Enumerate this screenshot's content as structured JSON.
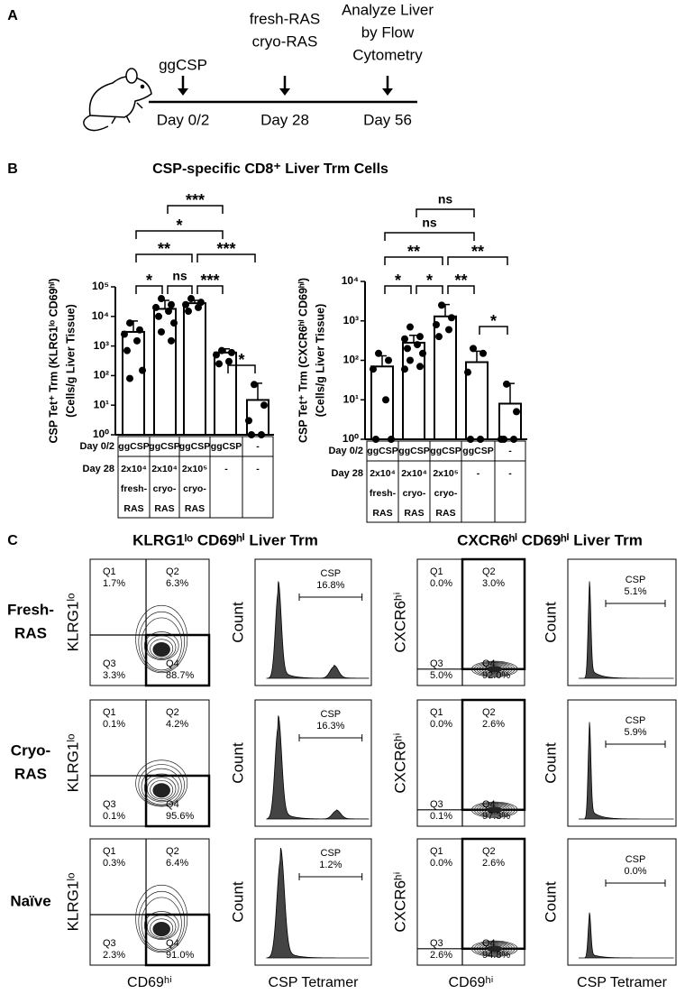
{
  "panel_a": {
    "label": "A",
    "events": [
      [
        "ggCSP"
      ],
      [
        "fresh-RAS",
        "cryo-RAS"
      ],
      [
        "Analyze Liver",
        "by Flow",
        "Cytometry"
      ]
    ],
    "days": [
      "Day 0/2",
      "Day 28",
      "Day 56"
    ]
  },
  "panel_b": {
    "label": "B",
    "title": "CSP-specific CD8⁺ Liver Trm Cells"
  },
  "chart_data": [
    {
      "type": "bar",
      "color": "#ffffff",
      "log_scale": true,
      "y_label": [
        "CSP Tet⁺ Trm (KLRG1ˡᵒ CD69ʰⁱ)",
        "(Cells/g Liver Tissue)"
      ],
      "ylim": [
        1,
        100000
      ],
      "yticks": [
        {
          "value": 1,
          "label": "10⁰"
        },
        {
          "value": 10,
          "label": "10¹"
        },
        {
          "value": 100,
          "label": "10²"
        },
        {
          "value": 1000,
          "label": "10³"
        },
        {
          "value": 10000,
          "label": "10⁴"
        },
        {
          "value": 100000,
          "label": "10⁵"
        }
      ],
      "values": [
        3000,
        18000,
        28000,
        600,
        15
      ],
      "errors": [
        4000,
        17000,
        7000,
        200,
        40
      ],
      "points": [
        [
          6000,
          3500,
          2500,
          1500,
          700,
          150,
          80
        ],
        [
          40000,
          25000,
          20000,
          15000,
          10000,
          6000,
          3000,
          1500
        ],
        [
          40000,
          30000,
          25000,
          20000,
          15000
        ],
        [
          700,
          600,
          500,
          300,
          250
        ],
        [
          50,
          10,
          3,
          1,
          1
        ]
      ],
      "significance": [
        {
          "from": 0,
          "to": 1,
          "label": "*"
        },
        {
          "from": 1,
          "to": 2,
          "label": "ns"
        },
        {
          "from": 2,
          "to": 3,
          "label": "***"
        },
        {
          "from": 3,
          "to": 4,
          "label": "*"
        },
        {
          "from": 0,
          "to": 2,
          "label": "**"
        },
        {
          "from": 2,
          "to": 4,
          "label": "***"
        },
        {
          "from": 0,
          "to": 3,
          "label": "*"
        },
        {
          "from": 1,
          "to": 3,
          "label": "***"
        }
      ],
      "table": {
        "row_labels": [
          "Day 0/2",
          "Day 28"
        ],
        "rows": [
          [
            [
              "ggCSP"
            ],
            [
              "ggCSP"
            ],
            [
              "ggCSP"
            ],
            [
              "ggCSP"
            ],
            [
              "-"
            ]
          ],
          [
            [
              "2x10⁴",
              "fresh-",
              "RAS"
            ],
            [
              "2x10⁴",
              "cryo-",
              "RAS"
            ],
            [
              "2x10⁵",
              "cryo-",
              "RAS"
            ],
            [
              "-"
            ],
            [
              "-"
            ]
          ]
        ]
      }
    },
    {
      "type": "bar",
      "color": "#ffffff",
      "log_scale": true,
      "y_label": [
        "CSP Tet⁺ Trm (CXCR6ʰⁱ CD69ʰⁱ)",
        "(Cells/g Liver Tissue)"
      ],
      "ylim": [
        1,
        10000
      ],
      "yticks": [
        {
          "value": 1,
          "label": "10⁰"
        },
        {
          "value": 10,
          "label": "10¹"
        },
        {
          "value": 100,
          "label": "10²"
        },
        {
          "value": 1000,
          "label": "10³"
        },
        {
          "value": 10000,
          "label": "10⁴"
        }
      ],
      "values": [
        70,
        280,
        1300,
        90,
        8
      ],
      "errors": [
        60,
        150,
        1300,
        80,
        18
      ],
      "points": [
        [
          150,
          100,
          60,
          10,
          1,
          1
        ],
        [
          700,
          400,
          350,
          250,
          200,
          150,
          100,
          70,
          60
        ],
        [
          2500,
          1200,
          800,
          600,
          400
        ],
        [
          200,
          150,
          50,
          1,
          1
        ],
        [
          25,
          5,
          1,
          1,
          1
        ]
      ],
      "significance": [
        {
          "from": 0,
          "to": 1,
          "label": "*"
        },
        {
          "from": 1,
          "to": 2,
          "label": "*"
        },
        {
          "from": 2,
          "to": 3,
          "label": "**"
        },
        {
          "from": 3,
          "to": 4,
          "label": "*"
        },
        {
          "from": 0,
          "to": 2,
          "label": "**"
        },
        {
          "from": 2,
          "to": 4,
          "label": "**"
        },
        {
          "from": 0,
          "to": 3,
          "label": "ns"
        },
        {
          "from": 1,
          "to": 3,
          "label": "ns"
        }
      ],
      "table": {
        "row_labels": [
          "Day 0/2",
          "Day 28"
        ],
        "rows": [
          [
            [
              "ggCSP"
            ],
            [
              "ggCSP"
            ],
            [
              "ggCSP"
            ],
            [
              "ggCSP"
            ],
            [
              "-"
            ]
          ],
          [
            [
              "2x10⁴",
              "fresh-",
              "RAS"
            ],
            [
              "2x10⁴",
              "cryo-",
              "RAS"
            ],
            [
              "2x10⁵",
              "cryo-",
              "RAS"
            ],
            [
              "-"
            ],
            [
              "-"
            ]
          ]
        ]
      }
    }
  ],
  "panel_c": {
    "label": "C",
    "headers": [
      "KLRG1ˡᵒ CD69ʰⁱ Liver Trm",
      "CXCR6ʰⁱ CD69ʰⁱ Liver Trm"
    ],
    "row_labels": [
      [
        "Fresh-",
        "RAS"
      ],
      [
        "Cryo-",
        "RAS"
      ],
      [
        "Naïve"
      ]
    ],
    "y_labels": [
      "KLRG1ˡᵒ",
      "Count",
      "CXCR6ʰⁱ",
      "Count"
    ],
    "x_labels": [
      "CD69ʰⁱ",
      "CSP Tetramer",
      "CD69ʰⁱ",
      "CSP Tetramer"
    ],
    "rows": [
      [
        {
          "quadrants": [
            {
              "name": "Q1",
              "percent": "1.7%"
            },
            {
              "name": "Q2",
              "percent": "6.3%"
            },
            {
              "name": "Q3",
              "percent": "3.3%"
            },
            {
              "name": "Q4",
              "percent": "88.7%"
            }
          ]
        },
        {
          "gate": "CSP",
          "percent": "16.8%"
        },
        {
          "quadrants": [
            {
              "name": "Q1",
              "percent": "0.0%"
            },
            {
              "name": "Q2",
              "percent": "3.0%"
            },
            {
              "name": "Q3",
              "percent": "5.0%"
            },
            {
              "name": "Q4",
              "percent": "92.0%"
            }
          ]
        },
        {
          "gate": "CSP",
          "percent": "5.1%"
        }
      ],
      [
        {
          "quadrants": [
            {
              "name": "Q1",
              "percent": "0.1%"
            },
            {
              "name": "Q2",
              "percent": "4.2%"
            },
            {
              "name": "Q3",
              "percent": "0.1%"
            },
            {
              "name": "Q4",
              "percent": "95.6%"
            }
          ]
        },
        {
          "gate": "CSP",
          "percent": "16.3%"
        },
        {
          "quadrants": [
            {
              "name": "Q1",
              "percent": "0.0%"
            },
            {
              "name": "Q2",
              "percent": "2.6%"
            },
            {
              "name": "Q3",
              "percent": "0.1%"
            },
            {
              "name": "Q4",
              "percent": "97.3%"
            }
          ]
        },
        {
          "gate": "CSP",
          "percent": "5.9%"
        }
      ],
      [
        {
          "quadrants": [
            {
              "name": "Q1",
              "percent": "0.3%"
            },
            {
              "name": "Q2",
              "percent": "6.4%"
            },
            {
              "name": "Q3",
              "percent": "2.3%"
            },
            {
              "name": "Q4",
              "percent": "91.0%"
            }
          ]
        },
        {
          "gate": "CSP",
          "percent": "1.2%"
        },
        {
          "quadrants": [
            {
              "name": "Q1",
              "percent": "0.0%"
            },
            {
              "name": "Q2",
              "percent": "2.6%"
            },
            {
              "name": "Q3",
              "percent": "2.6%"
            },
            {
              "name": "Q4",
              "percent": "94.8%"
            }
          ]
        },
        {
          "gate": "CSP",
          "percent": "0.0%"
        }
      ]
    ]
  }
}
